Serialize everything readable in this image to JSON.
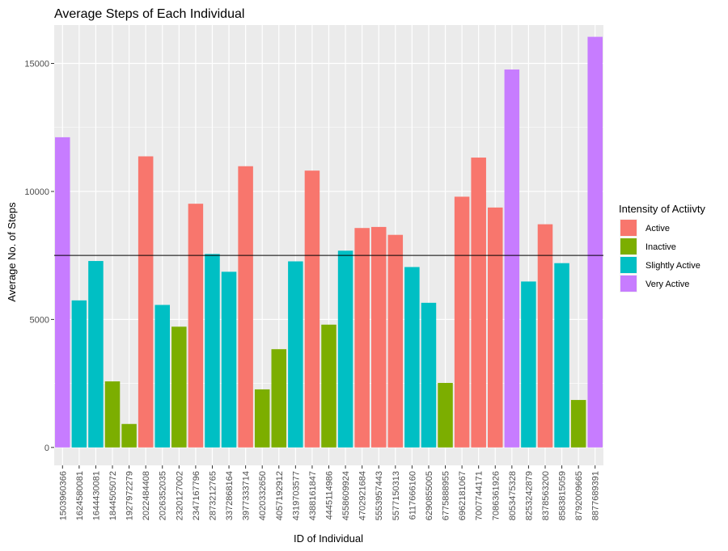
{
  "chart_data": {
    "type": "bar",
    "title": "Average Steps of Each Individual",
    "xlabel": "ID of Individual",
    "ylabel": "Average No. of Steps",
    "ylim": [
      -700,
      16500
    ],
    "yticks": [
      0,
      5000,
      10000,
      15000
    ],
    "reference_line": 7500,
    "grid": true,
    "legend": {
      "title": "Intensity of Actiivty",
      "placement": "right",
      "items": [
        {
          "name": "Active",
          "color": "#F8766D"
        },
        {
          "name": "Inactive",
          "color": "#7CAE00"
        },
        {
          "name": "Slightly Active",
          "color": "#00BFC4"
        },
        {
          "name": "Very Active",
          "color": "#C77CFF"
        }
      ]
    },
    "categories": [
      "1503960366",
      "1624580081",
      "1644430081",
      "1844505072",
      "1927972279",
      "2022484408",
      "2026352035",
      "2320127002",
      "2347167796",
      "2873212765",
      "3372868164",
      "3977333714",
      "4020332650",
      "4057192912",
      "4319703577",
      "4388161847",
      "4445114986",
      "4558609924",
      "4702921684",
      "5553957443",
      "5577150313",
      "6117666160",
      "6290855005",
      "6775888955",
      "6962181067",
      "7007744171",
      "7086361926",
      "8053475328",
      "8253242879",
      "8378563200",
      "8583815059",
      "8792009665",
      "8877689391"
    ],
    "values": [
      12117,
      5744,
      7283,
      2580,
      917,
      11371,
      5567,
      4717,
      9520,
      7556,
      6862,
      10985,
      2268,
      3838,
      7269,
      10814,
      4797,
      7685,
      8572,
      8613,
      8304,
      7047,
      5650,
      2520,
      9795,
      11323,
      9372,
      14763,
      6482,
      8718,
      7199,
      1854,
      16040
    ],
    "intensity": [
      "Very Active",
      "Slightly Active",
      "Slightly Active",
      "Inactive",
      "Inactive",
      "Active",
      "Slightly Active",
      "Inactive",
      "Active",
      "Slightly Active",
      "Slightly Active",
      "Active",
      "Inactive",
      "Inactive",
      "Slightly Active",
      "Active",
      "Inactive",
      "Slightly Active",
      "Active",
      "Active",
      "Active",
      "Slightly Active",
      "Slightly Active",
      "Inactive",
      "Active",
      "Active",
      "Active",
      "Very Active",
      "Slightly Active",
      "Active",
      "Slightly Active",
      "Inactive",
      "Very Active"
    ]
  }
}
